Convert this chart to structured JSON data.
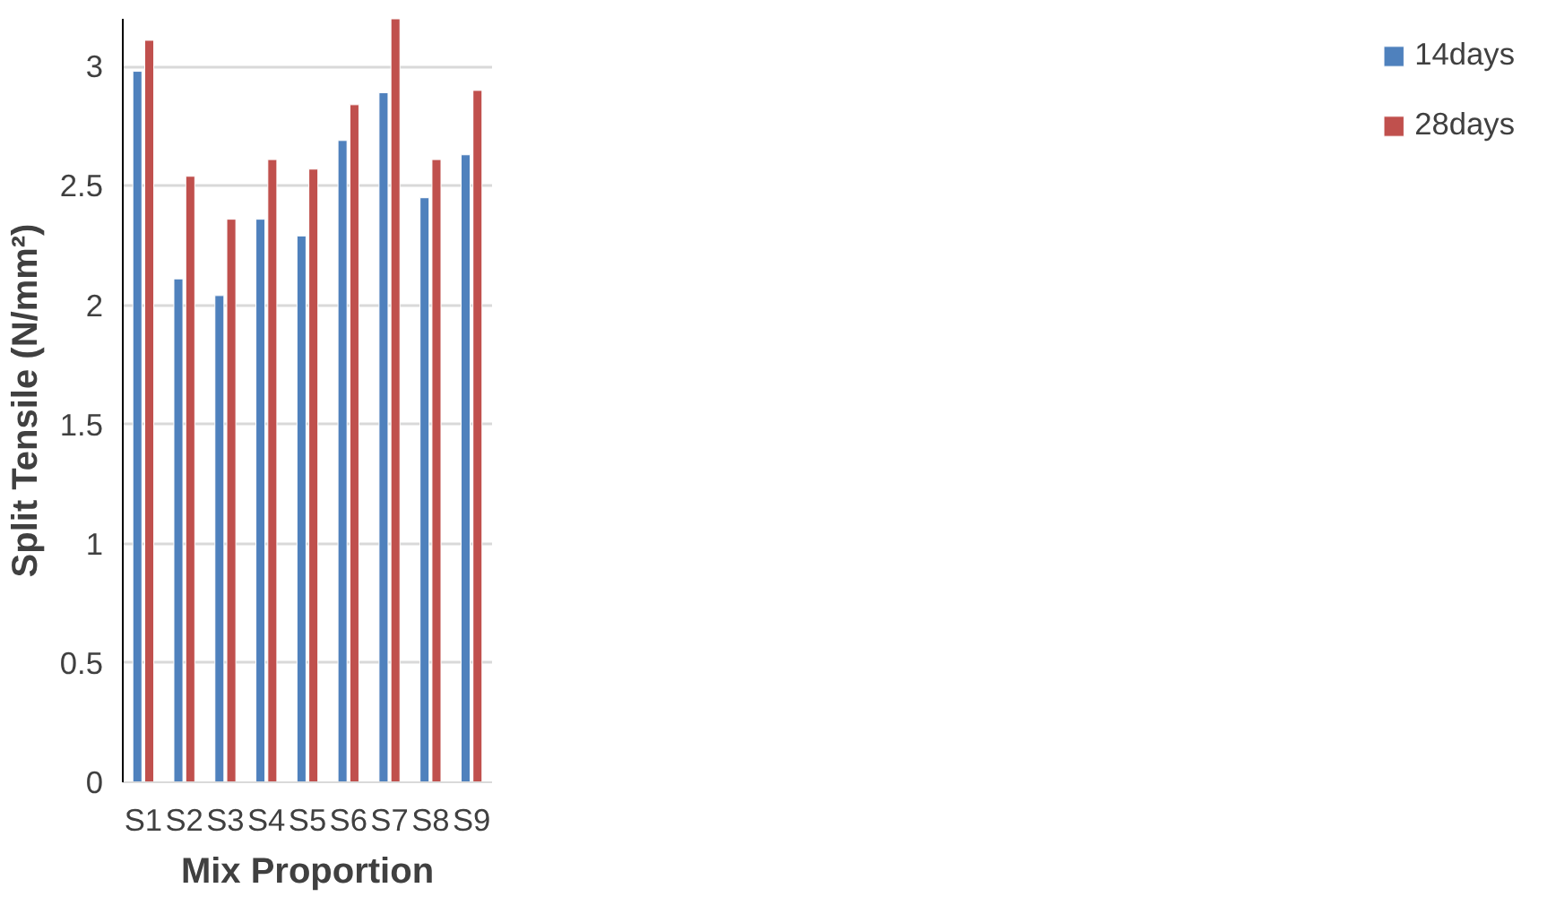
{
  "chart_data": {
    "type": "bar",
    "xlabel": "Mix Proportion",
    "ylabel": "Split Tensile (N/mm²)",
    "categories": [
      "S1",
      "S2",
      "S3",
      "S4",
      "S5",
      "S6",
      "S7",
      "S8",
      "S9"
    ],
    "series": [
      {
        "name": "14days",
        "color": "#4f81bd",
        "values": [
          2.98,
          2.11,
          2.04,
          2.36,
          2.29,
          2.69,
          2.89,
          2.45,
          2.63
        ]
      },
      {
        "name": "28days",
        "color": "#c0504d",
        "values": [
          3.11,
          2.54,
          2.36,
          2.61,
          2.57,
          2.84,
          3.2,
          2.61,
          2.9
        ]
      }
    ],
    "ylim": [
      0,
      3.2
    ],
    "yticks": [
      0,
      0.5,
      1,
      1.5,
      2,
      2.5,
      3
    ],
    "grid": "y",
    "legend": "right"
  }
}
